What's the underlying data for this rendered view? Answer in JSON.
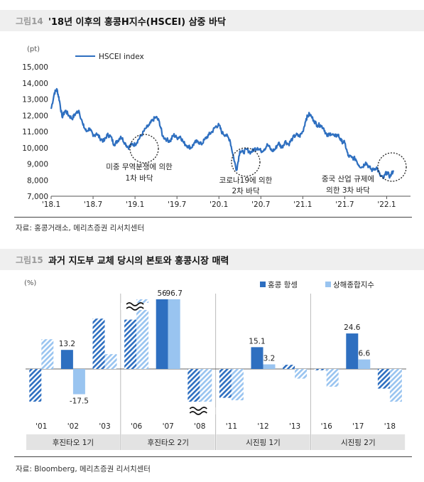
{
  "fig1": {
    "number": "그림14",
    "title": "'18년 이후의 홍콩H지수(HSCEI) 삼중 바닥",
    "source": "자료: 홍콩거래소, 메리츠증권 리서치센터"
  },
  "fig2": {
    "number": "그림15",
    "title": "과거 지도부 교체 당시의 본토와 홍콩시장 매력",
    "source": "자료: Bloomberg, 메리츠증권 리서치센터"
  },
  "colors": {
    "hk": "#2e6fc0",
    "sh": "#99c4f0",
    "line": "#2e6fc0",
    "group_band": "#e3e3e3"
  },
  "chart_data": [
    {
      "type": "line",
      "ylabel": "(pt)",
      "ylim": [
        7000,
        15000
      ],
      "yticks": [
        7000,
        8000,
        9000,
        10000,
        11000,
        12000,
        13000,
        14000,
        15000
      ],
      "ytick_labels": [
        "7,000",
        "8,000",
        "9,000",
        "10,000",
        "11,000",
        "12,000",
        "13,000",
        "14,000",
        "15,000"
      ],
      "xlim": [
        2018.0,
        2022.25
      ],
      "xticks": [
        2018.0,
        2018.5,
        2019.0,
        2019.5,
        2020.0,
        2020.5,
        2021.0,
        2021.5,
        2022.0
      ],
      "xtick_labels": [
        "'18.1",
        "'18.7",
        "'19.1",
        "'19.7",
        "'20.1",
        "'20.7",
        "'21.1",
        "'21.7",
        "'22.1"
      ],
      "series": [
        {
          "name": "HSCEI index",
          "x": [
            2018.0,
            2018.04,
            2018.07,
            2018.1,
            2018.13,
            2018.17,
            2018.21,
            2018.25,
            2018.29,
            2018.33,
            2018.38,
            2018.42,
            2018.46,
            2018.5,
            2018.54,
            2018.58,
            2018.63,
            2018.67,
            2018.71,
            2018.75,
            2018.79,
            2018.83,
            2018.88,
            2018.92,
            2018.96,
            2019.0,
            2019.04,
            2019.08,
            2019.13,
            2019.17,
            2019.21,
            2019.25,
            2019.29,
            2019.33,
            2019.38,
            2019.42,
            2019.46,
            2019.5,
            2019.54,
            2019.58,
            2019.63,
            2019.67,
            2019.71,
            2019.75,
            2019.79,
            2019.83,
            2019.88,
            2019.92,
            2019.96,
            2020.0,
            2020.04,
            2020.08,
            2020.13,
            2020.17,
            2020.21,
            2020.25,
            2020.29,
            2020.33,
            2020.38,
            2020.42,
            2020.46,
            2020.5,
            2020.54,
            2020.58,
            2020.63,
            2020.67,
            2020.71,
            2020.75,
            2020.79,
            2020.83,
            2020.88,
            2020.92,
            2020.96,
            2021.0,
            2021.04,
            2021.08,
            2021.13,
            2021.17,
            2021.21,
            2021.25,
            2021.29,
            2021.33,
            2021.38,
            2021.42,
            2021.46,
            2021.5,
            2021.54,
            2021.58,
            2021.63,
            2021.67,
            2021.71,
            2021.75,
            2021.79,
            2021.83,
            2021.88,
            2021.92,
            2021.96,
            2022.0,
            2022.04,
            2022.08
          ],
          "y": [
            12400,
            13400,
            13600,
            12900,
            11900,
            12300,
            12000,
            11800,
            12100,
            12300,
            11400,
            11000,
            11200,
            10700,
            10900,
            10600,
            10400,
            10800,
            10700,
            10200,
            10400,
            10700,
            10300,
            10000,
            10200,
            10200,
            10500,
            10800,
            11200,
            11400,
            11700,
            11900,
            11600,
            10700,
            10500,
            10400,
            10800,
            10600,
            10700,
            10300,
            10100,
            10000,
            10300,
            10400,
            10200,
            10500,
            10800,
            11000,
            11300,
            11400,
            10900,
            10800,
            10500,
            9500,
            8600,
            9800,
            9700,
            9900,
            9700,
            9900,
            10000,
            9800,
            9900,
            10200,
            9800,
            9900,
            10300,
            10000,
            10400,
            10200,
            10600,
            10800,
            10700,
            11000,
            11800,
            12100,
            11700,
            11400,
            11400,
            11200,
            10700,
            10900,
            10700,
            10800,
            10400,
            10300,
            9500,
            9400,
            9300,
            8900,
            8800,
            9100,
            8800,
            8600,
            8800,
            8300,
            8100,
            8500,
            8200,
            8600
          ]
        }
      ]
    },
    {
      "type": "bar",
      "ylabel": "(%)",
      "legend": [
        "홍콩 항셍",
        "상해종합지수"
      ],
      "categories": [
        "'01",
        "'02",
        "'03",
        "'06",
        "'07",
        "'08",
        "'11",
        "'12",
        "'13",
        "'16",
        "'17",
        "'18"
      ],
      "groups": [
        {
          "label": "후진타오 1기",
          "span": 3
        },
        {
          "label": "후진타오 2기",
          "span": 3
        },
        {
          "label": "시진핑 1기",
          "span": 3
        },
        {
          "label": "시진핑 2기",
          "span": 3
        }
      ],
      "series": [
        {
          "name": "홍콩 항셍",
          "values": [
            -24.5,
            13.2,
            34.9,
            34.2,
            56,
            -48.3,
            -20,
            15.1,
            2.9,
            -0.9,
            24.6,
            -13.6
          ]
        },
        {
          "name": "상해종합지수",
          "values": [
            20.6,
            -17.5,
            10.3,
            130.4,
            96.7,
            -65.4,
            -21.7,
            3.2,
            -6.7,
            -12.3,
            6.6,
            -24.6
          ]
        }
      ],
      "highlighted_years": [
        "'01",
        "'03",
        "'06",
        "'08",
        "'11",
        "'13",
        "'16",
        "'18"
      ],
      "data_labels": [
        {
          "category": "'02",
          "series": "홍콩 항셍",
          "text": "13.2"
        },
        {
          "category": "'02",
          "series": "상해종합지수",
          "text": "-17.5"
        },
        {
          "category": "'07",
          "series": "홍콩 항셍",
          "text": "56"
        },
        {
          "category": "'07",
          "series": "상해종합지수",
          "text": "96.7"
        },
        {
          "category": "'12",
          "series": "홍콩 항셍",
          "text": "15.1"
        },
        {
          "category": "'12",
          "series": "상해종합지수",
          "text": "3.2"
        },
        {
          "category": "'17",
          "series": "홍콩 항셍",
          "text": "24.6"
        },
        {
          "category": "'17",
          "series": "상해종합지수",
          "text": "6.6"
        }
      ],
      "axis_breaks": [
        "'06",
        "'08"
      ]
    }
  ],
  "annotations": [
    {
      "text": [
        "미중 무역분쟁에 의한",
        "1차 바닥"
      ]
    },
    {
      "text": [
        "코로나19에 의한",
        "2차 바닥"
      ]
    },
    {
      "text": [
        "중국 산업 규제에",
        "의한 3차 바닥"
      ]
    }
  ]
}
